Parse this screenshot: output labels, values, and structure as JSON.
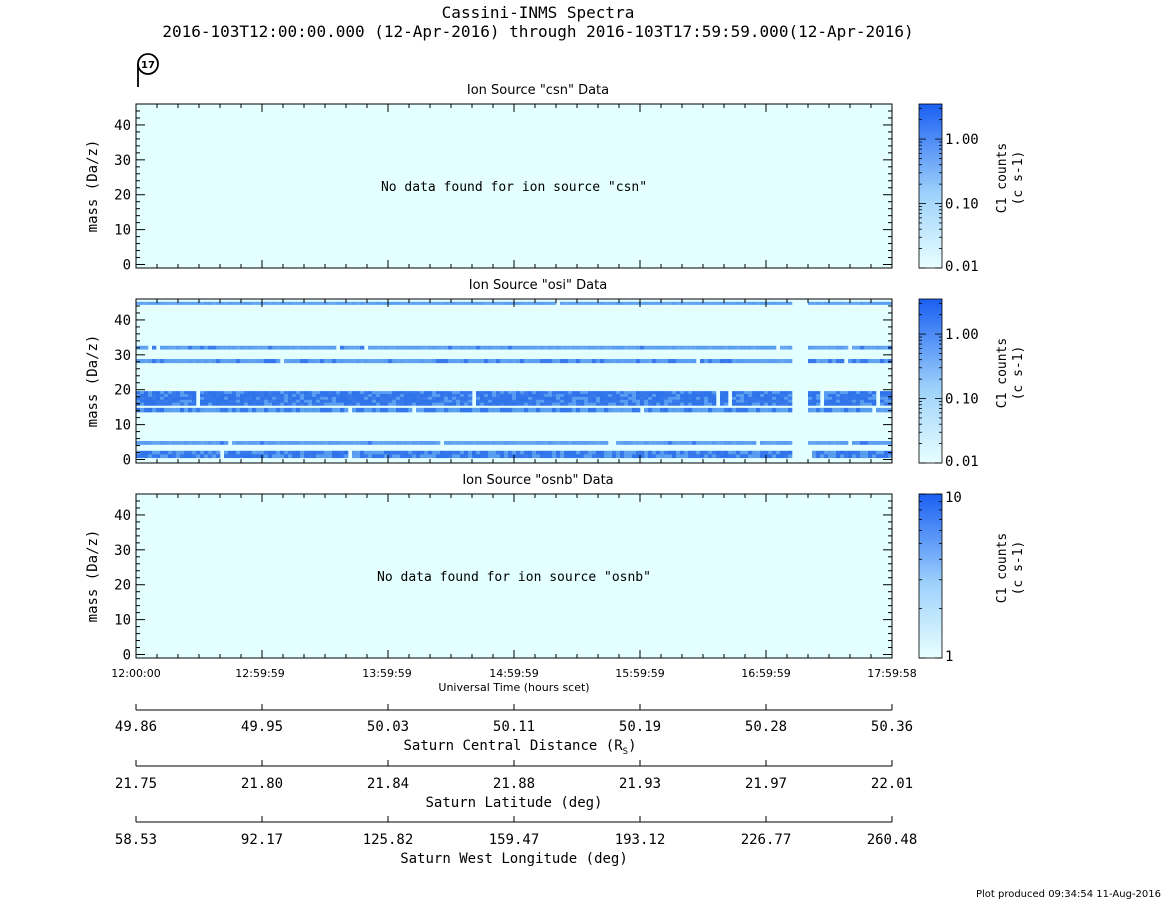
{
  "header": {
    "title": "Cassini-INMS Spectra",
    "subtitle": "2016-103T12:00:00.000 (12-Apr-2016) through 2016-103T17:59:59.000(12-Apr-2016)",
    "orbit_badge": "17"
  },
  "footer": {
    "produced": "Plot produced 09:34:54 11-Aug-2016"
  },
  "colors": {
    "background": "#e3ffff",
    "band_dark": "#2f73ea",
    "band_mid": "#4d95f0",
    "colorbar_top": "#1a5ff2",
    "colorbar_bottom": "#e8ffff",
    "axis": "#000000"
  },
  "chart_data": [
    {
      "type": "heatmap",
      "title": "Ion Source \"csn\" Data",
      "ylabel": "mass (Da/z)",
      "ylim": [
        -1,
        46
      ],
      "yticks": [
        "0",
        "10",
        "20",
        "30",
        "40"
      ],
      "empty_message": "No data found for ion source \"csn\"",
      "bands": [],
      "colorbar": {
        "label": "C1 counts",
        "units": "(c s-1)",
        "scale": "log",
        "range": [
          0.01,
          3.5
        ],
        "ticks": [
          "1.00",
          "0.10",
          "0.01"
        ],
        "tick_values": [
          1.0,
          0.1,
          0.01
        ]
      }
    },
    {
      "type": "heatmap",
      "title": "Ion Source \"osi\" Data",
      "ylabel": "mass (Da/z)",
      "ylim": [
        -1,
        46
      ],
      "yticks": [
        "0",
        "10",
        "20",
        "30",
        "40"
      ],
      "empty_message": "",
      "gap_hours": [
        [
          5.2,
          5.32
        ]
      ],
      "bands": [
        {
          "mass_low": 0.5,
          "mass_high": 2.5,
          "intensity": 0.9
        },
        {
          "mass_low": 4.3,
          "mass_high": 5.3,
          "intensity": 0.75
        },
        {
          "mass_low": 13.6,
          "mass_high": 14.8,
          "intensity": 0.85
        },
        {
          "mass_low": 15.5,
          "mass_high": 19.6,
          "intensity": 0.95
        },
        {
          "mass_low": 27.7,
          "mass_high": 28.8,
          "intensity": 0.8
        },
        {
          "mass_low": 31.6,
          "mass_high": 32.6,
          "intensity": 0.75
        },
        {
          "mass_low": 44.4,
          "mass_high": 45.2,
          "intensity": 0.7
        }
      ],
      "colorbar": {
        "label": "C1 counts",
        "units": "(c s-1)",
        "scale": "log",
        "range": [
          0.01,
          3.5
        ],
        "ticks": [
          "1.00",
          "0.10",
          "0.01"
        ],
        "tick_values": [
          1.0,
          0.1,
          0.01
        ]
      }
    },
    {
      "type": "heatmap",
      "title": "Ion Source \"osnb\" Data",
      "ylabel": "mass (Da/z)",
      "ylim": [
        -1,
        46
      ],
      "yticks": [
        "0",
        "10",
        "20",
        "30",
        "40"
      ],
      "empty_message": "No data found for ion source \"osnb\"",
      "bands": [],
      "colorbar": {
        "label": "C1 counts",
        "units": "(c s-1)",
        "scale": "log",
        "range": [
          1,
          10
        ],
        "ticks": [
          "10",
          "1"
        ],
        "tick_values": [
          10,
          1
        ]
      }
    }
  ],
  "time_axis": {
    "label": "Universal Time (hours scet)",
    "ticks": [
      "12:00:00",
      "12:59:59",
      "13:59:59",
      "14:59:59",
      "15:59:59",
      "16:59:59",
      "17:59:58"
    ]
  },
  "ephemeris_axes": [
    {
      "label": "Saturn Central Distance (R",
      "label_sub": "S",
      "label_end": ")",
      "ticks": [
        "49.86",
        "49.95",
        "50.03",
        "50.11",
        "50.19",
        "50.28",
        "50.36"
      ]
    },
    {
      "label": "Saturn Latitude (deg)",
      "label_sub": "",
      "label_end": "",
      "ticks": [
        "21.75",
        "21.80",
        "21.84",
        "21.88",
        "21.93",
        "21.97",
        "22.01"
      ]
    },
    {
      "label": "Saturn West Longitude (deg)",
      "label_sub": "",
      "label_end": "",
      "ticks": [
        "58.53",
        "92.17",
        "125.82",
        "159.47",
        "193.12",
        "226.77",
        "260.48"
      ]
    }
  ]
}
